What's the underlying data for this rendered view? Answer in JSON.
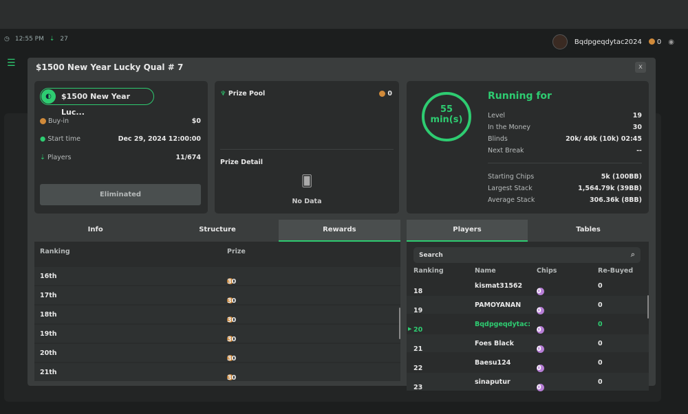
{
  "status": {
    "time": "12:55 PM",
    "online": "27"
  },
  "user": {
    "name": "Bqdpgeqdytac2024",
    "balance": "0"
  },
  "modal": {
    "title": "$1500 New Year Lucky Qual # 7",
    "close": "x"
  },
  "info": {
    "name": "$1500 New Year Luc...",
    "rows": [
      {
        "label": "Buy-in",
        "value": "$0"
      },
      {
        "label": "Start time",
        "value": "Dec 29, 2024 12:00:00"
      },
      {
        "label": "Players",
        "value": "11/674"
      }
    ],
    "button": "Eliminated"
  },
  "prize": {
    "pool_label": "Prize Pool",
    "pool_value": "0",
    "detail_label": "Prize Detail",
    "empty": "No Data"
  },
  "running": {
    "minutes": "55",
    "unit": "min(s)",
    "title": "Running for",
    "rows": [
      {
        "label": "Level",
        "value": "19"
      },
      {
        "label": "In the Money",
        "value": "30"
      },
      {
        "label": "Blinds",
        "value": "20k/ 40k (10k) 02:45"
      },
      {
        "label": "Next Break",
        "value": "--"
      }
    ],
    "stats": [
      {
        "label": "Starting Chips",
        "value": "5k (100BB)"
      },
      {
        "label": "Largest Stack",
        "value": "1,564.79k (39BB)"
      },
      {
        "label": "Average Stack",
        "value": "306.36k (8BB)"
      }
    ]
  },
  "left_tabs": [
    "Info",
    "Structure",
    "Rewards"
  ],
  "rewards": {
    "headers": [
      "Ranking",
      "Prize"
    ],
    "rows": [
      {
        "rank": "16th",
        "prize": "30"
      },
      {
        "rank": "17th",
        "prize": "30"
      },
      {
        "rank": "18th",
        "prize": "30"
      },
      {
        "rank": "19th",
        "prize": "30"
      },
      {
        "rank": "20th",
        "prize": "30"
      },
      {
        "rank": "21th",
        "prize": "30"
      }
    ]
  },
  "right_tabs": [
    "Players",
    "Tables"
  ],
  "players": {
    "search_placeholder": "Search",
    "headers": [
      "Ranking",
      "Name",
      "Chips",
      "Re-Buyed"
    ],
    "rows": [
      {
        "rank": "18",
        "name": "kismat31562",
        "chips": "0",
        "rebuy": "0"
      },
      {
        "rank": "19",
        "name": "PAMOYANAN",
        "chips": "0",
        "rebuy": "0"
      },
      {
        "rank": "20",
        "name": "Bqdpgeqdytac:",
        "chips": "0",
        "rebuy": "0",
        "self": true
      },
      {
        "rank": "21",
        "name": "Foes Black",
        "chips": "0",
        "rebuy": "0"
      },
      {
        "rank": "22",
        "name": "Baesu124",
        "chips": "0",
        "rebuy": "0"
      },
      {
        "rank": "23",
        "name": "sinaputur",
        "chips": "0",
        "rebuy": "0"
      }
    ]
  },
  "colors": {
    "accent": "#2ecc71",
    "coin": "#d08a3a",
    "chip": "#b77ed6"
  }
}
